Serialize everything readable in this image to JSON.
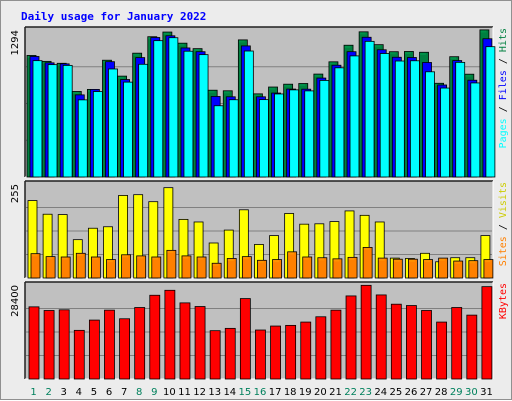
{
  "chart_data": {
    "type": "bar",
    "title": "Daily usage for January 2022",
    "categories": [
      "1",
      "2",
      "3",
      "4",
      "5",
      "6",
      "7",
      "8",
      "9",
      "10",
      "11",
      "12",
      "13",
      "14",
      "15",
      "16",
      "17",
      "18",
      "19",
      "20",
      "21",
      "22",
      "23",
      "24",
      "25",
      "26",
      "27",
      "28",
      "29",
      "30",
      "31"
    ],
    "weekend_days": [
      "1",
      "2",
      "8",
      "9",
      "15",
      "16",
      "22",
      "23",
      "29",
      "30"
    ],
    "panels": [
      {
        "id": "hits",
        "ymax": 1294,
        "max_label": "1294",
        "series": [
          {
            "name": "Hits",
            "color": "#008040",
            "values": [
              1070,
              1018,
              1001,
              753,
              771,
              1028,
              888,
              1090,
              1235,
              1276,
              1178,
              1130,
              764,
              759,
              1207,
              732,
              792,
              817,
              823,
              906,
              1014,
              1160,
              1278,
              1165,
              1103,
              1105,
              1098,
              825,
              1059,
              905,
              1295
            ]
          },
          {
            "name": "Files",
            "color": "#0000ff",
            "values": [
              1061,
              1005,
              996,
              723,
              771,
              1015,
              858,
              1051,
              1228,
              1243,
              1136,
              1103,
              709,
              706,
              1154,
              706,
              739,
              774,
              773,
              871,
              984,
              1103,
              1230,
              1120,
              1054,
              1052,
              1008,
              810,
              1025,
              852,
              1217
            ]
          },
          {
            "name": "Pages",
            "color": "#00ffff",
            "values": [
              1024,
              989,
              982,
              679,
              752,
              951,
              835,
              992,
              1200,
              1226,
              1107,
              1077,
              627,
              680,
              1109,
              681,
              731,
              767,
              758,
              850,
              961,
              1066,
              1194,
              1087,
              1021,
              1023,
              926,
              783,
              1009,
              828,
              1147
            ]
          }
        ]
      },
      {
        "id": "visits",
        "ymax": 255,
        "max_label": "255",
        "series": [
          {
            "name": "Visits",
            "color": "#ffff00",
            "values": [
              210,
              173,
              172,
              104,
              135,
              139,
              224,
              226,
              207,
              245,
              159,
              152,
              95,
              130,
              185,
              91,
              115,
              175,
              146,
              147,
              153,
              182,
              170,
              152,
              54,
              53,
              67,
              44,
              55,
              55,
              115
            ]
          },
          {
            "name": "Sites",
            "color": "#ff8000",
            "values": [
              66,
              58,
              57,
              67,
              57,
              50,
              63,
              60,
              57,
              75,
              60,
              57,
              40,
              53,
              58,
              48,
              50,
              71,
              57,
              55,
              52,
              56,
              83,
              54,
              51,
              51,
              50,
              54,
              46,
              47,
              50
            ]
          }
        ]
      },
      {
        "id": "kbytes",
        "ymax": 28400,
        "max_label": "28400",
        "series": [
          {
            "name": "KBytes",
            "color": "#ff0000",
            "values": [
              21800,
              20700,
              20900,
              14700,
              17800,
              20800,
              18200,
              21600,
              25300,
              26800,
              23000,
              21900,
              14600,
              15300,
              24300,
              14800,
              16000,
              16200,
              17200,
              18800,
              20800,
              25100,
              28300,
              25400,
              22600,
              22200,
              20700,
              17200,
              21600,
              19300,
              27900
            ]
          }
        ]
      }
    ]
  }
}
